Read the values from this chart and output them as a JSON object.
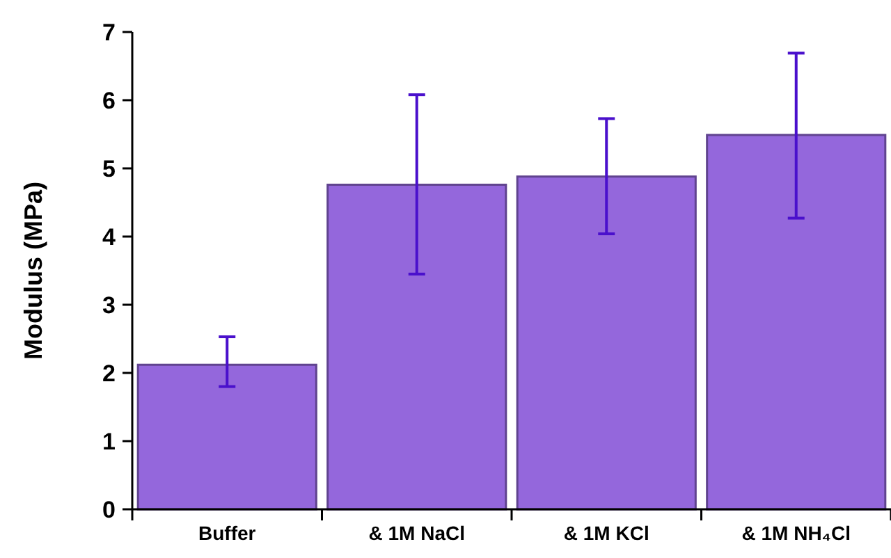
{
  "chart_data": {
    "type": "bar",
    "ylabel": "Modulus (MPa)",
    "categories": [
      "Buffer",
      "& 1M NaCl",
      "& 1M KCl",
      "& 1M NH₄Cl"
    ],
    "values": [
      2.12,
      4.76,
      4.88,
      5.49
    ],
    "errors": [
      [
        1.8,
        2.53
      ],
      [
        3.45,
        6.08
      ],
      [
        4.04,
        5.73
      ],
      [
        4.27,
        6.69
      ]
    ],
    "color": "#9467dc",
    "ylim": [
      0,
      7
    ],
    "yticks": [
      0,
      1,
      2,
      3,
      4,
      5,
      6,
      7
    ],
    "grid": false
  }
}
